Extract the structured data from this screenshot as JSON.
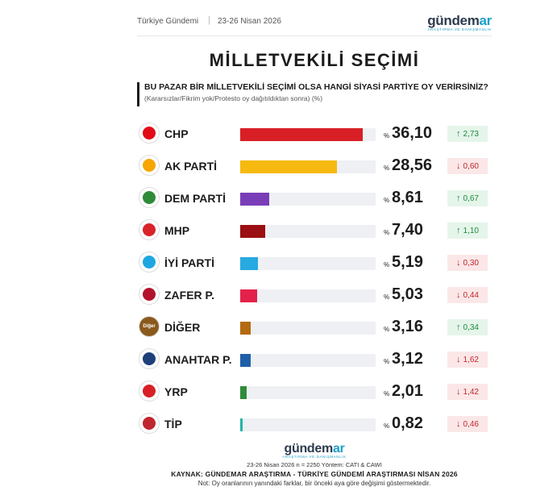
{
  "header": {
    "source": "Türkiye Gündemi",
    "separator": "|",
    "date": "23-26 Nisan 2026",
    "logo_word_a": "gündem",
    "logo_word_b": "ar",
    "logo_sub": "ARAŞTIRMA VE DANIŞMANLIK"
  },
  "title": "MİLLETVEKİLİ SEÇİMİ",
  "question": "BU PAZAR BİR MİLLETVEKİLİ SEÇİMİ OLSA HANGİ SİYASİ PARTİYE OY VERİRSİNİZ?",
  "question_note": "(Kararsızlar/Fikrim yok/Protesto oy dağıtıldıktan sonra) (%)",
  "colors": {
    "up_text": "#1c8a3c",
    "up_bg": "#e5f5ea",
    "down_text": "#c0262d",
    "down_bg": "#fbe7e7",
    "bar_track": "#eef0f3"
  },
  "chart_data": {
    "type": "bar",
    "orientation": "horizontal",
    "categories": [
      "CHP",
      "AK PARTİ",
      "DEM PARTİ",
      "MHP",
      "İYİ PARTİ",
      "ZAFER P.",
      "DİĞER",
      "ANAHTAR P.",
      "YRP",
      "TİP"
    ],
    "values": [
      36.1,
      28.56,
      8.61,
      7.4,
      5.19,
      5.03,
      3.16,
      3.12,
      2.01,
      0.82
    ],
    "xlim": [
      0,
      40
    ],
    "grid": false,
    "legend": "none"
  },
  "rows": [
    {
      "name": "CHP",
      "pct_text": "36,10",
      "value": 36.1,
      "color": "#d81f26",
      "logo_color": "#e30a17",
      "change_text": "2,73",
      "direction": "up"
    },
    {
      "name": "AK PARTİ",
      "pct_text": "28,56",
      "value": 28.56,
      "color": "#f6b90f",
      "logo_color": "#f7a600",
      "change_text": "0,60",
      "direction": "down"
    },
    {
      "name": "DEM PARTİ",
      "pct_text": "8,61",
      "value": 8.61,
      "color": "#7a3db8",
      "logo_color": "#2e8b3a",
      "change_text": "0,67",
      "direction": "up"
    },
    {
      "name": "MHP",
      "pct_text": "7,40",
      "value": 7.4,
      "color": "#9b0e12",
      "logo_color": "#d8232a",
      "change_text": "1,10",
      "direction": "up"
    },
    {
      "name": "İYİ PARTİ",
      "pct_text": "5,19",
      "value": 5.19,
      "color": "#27a9e1",
      "logo_color": "#1ea6e0",
      "change_text": "0,30",
      "direction": "down"
    },
    {
      "name": "ZAFER P.",
      "pct_text": "5,03",
      "value": 5.03,
      "color": "#e3224a",
      "logo_color": "#b3122d",
      "change_text": "0,44",
      "direction": "down"
    },
    {
      "name": "DİĞER",
      "pct_text": "3,16",
      "value": 3.16,
      "color": "#b36a10",
      "logo_color": "#8a5a1c",
      "logo_label": "Diğer",
      "change_text": "0,34",
      "direction": "up"
    },
    {
      "name": "ANAHTAR P.",
      "pct_text": "3,12",
      "value": 3.12,
      "color": "#1f5fa8",
      "logo_color": "#1f3f7a",
      "change_text": "1,62",
      "direction": "down"
    },
    {
      "name": "YRP",
      "pct_text": "2,01",
      "value": 2.01,
      "color": "#2e8b3a",
      "logo_color": "#d81f26",
      "change_text": "1,42",
      "direction": "down"
    },
    {
      "name": "TİP",
      "pct_text": "0,82",
      "value": 0.82,
      "color": "#1fb5a5",
      "logo_color": "#c0262d",
      "change_text": "0,46",
      "direction": "down"
    }
  ],
  "pct_sign": "%",
  "footer": {
    "logo_word_a": "gündem",
    "logo_word_b": "ar",
    "logo_sub": "ARAŞTIRMA VE DANIŞMANLIK",
    "meta": "23-26 Nisan 2026 n = 2250 Yöntem: CATI & CAWI",
    "source": "KAYNAK: GÜNDEMAR ARAŞTIRMA - TÜRKİYE GÜNDEMİ ARAŞTIRMASI NİSAN 2026",
    "note": "Not: Oy oranlarının yanındaki farklar, bir önceki aya göre değişimi göstermektedir."
  }
}
